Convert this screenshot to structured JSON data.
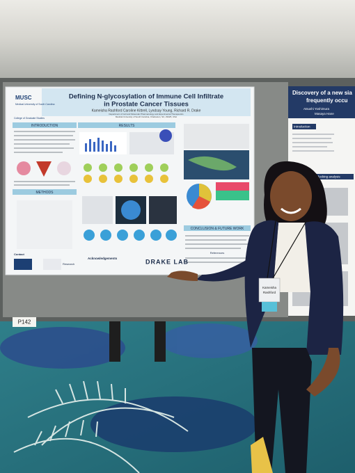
{
  "poster": {
    "logo": "MUSC",
    "institution": "Medical University of South Carolina",
    "college": "College of Graduate Studies",
    "title_line1": "Defining N-glycosylation of Immune Cell Infiltrate",
    "title_line2": "in Prostate Cancer Tissues",
    "authors": "Kameisha Rashford Caroline Kittrell, Lyndsay Young, Richard R. Drake",
    "affiliation_line1": "Department of Cell and Molecular Pharmacology and Experimental Therapeutics",
    "affiliation_line2": "Medical University of South Carolina, Charleston, SC, 29425, USA",
    "sections": [
      "INTRODUCTION",
      "METHODS",
      "RESULTS",
      "CONCLUSION & FUTURE WORK",
      "References"
    ],
    "contact": "Contact",
    "acknowledgements": "Acknowledgements",
    "lab": "DRAKE LAB",
    "research": "Research"
  },
  "board_label": "P142",
  "neighbor_poster": {
    "title_line1": "Discovery of a new sia",
    "title_line2": "frequently occu",
    "authors_line1": "Atsushi Yoshimura",
    "authors_line2": "Masaya Hane",
    "sections": [
      "Introduction",
      "In silico docking analysis"
    ]
  },
  "badge": {
    "name_line1": "Kameisha",
    "name_line2": "Rashford"
  }
}
